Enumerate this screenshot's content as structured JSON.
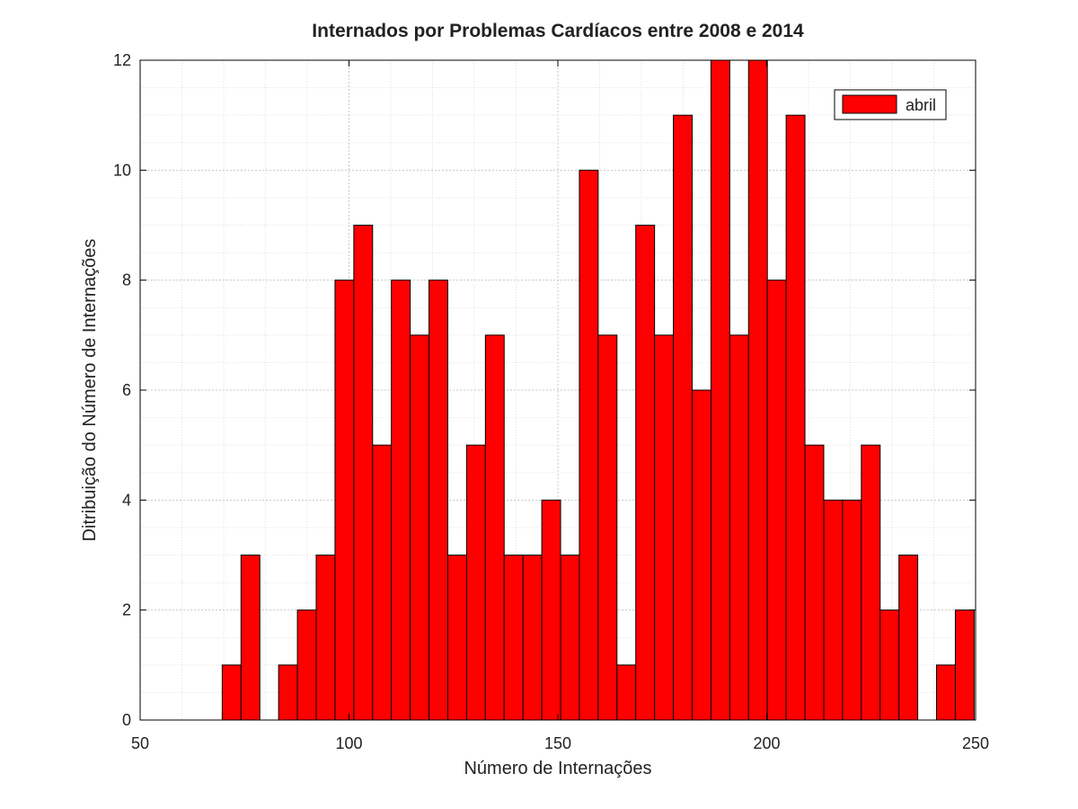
{
  "chart_data": {
    "type": "bar",
    "title": "Internados por Problemas Cardíacos entre 2008 e 2014",
    "xlabel": "Número de Internações",
    "ylabel": "Ditribuição do Número de Internações",
    "xlim": [
      50,
      250
    ],
    "ylim": [
      0,
      12
    ],
    "xticks": [
      50,
      100,
      150,
      200,
      250
    ],
    "yticks": [
      0,
      2,
      4,
      6,
      8,
      10,
      12
    ],
    "grid": true,
    "legend": {
      "position": "top-right",
      "entries": [
        "abril"
      ]
    },
    "bar_color": "#ff0000",
    "bin_width": 4.5,
    "series": [
      {
        "name": "abril",
        "bins": [
          {
            "x": 71.9,
            "value": 1
          },
          {
            "x": 76.4,
            "value": 3
          },
          {
            "x": 85.4,
            "value": 1
          },
          {
            "x": 89.9,
            "value": 2
          },
          {
            "x": 94.4,
            "value": 3
          },
          {
            "x": 98.9,
            "value": 8
          },
          {
            "x": 103.4,
            "value": 9
          },
          {
            "x": 107.9,
            "value": 5
          },
          {
            "x": 112.4,
            "value": 8
          },
          {
            "x": 116.9,
            "value": 7
          },
          {
            "x": 121.4,
            "value": 8
          },
          {
            "x": 125.9,
            "value": 3
          },
          {
            "x": 130.4,
            "value": 5
          },
          {
            "x": 134.9,
            "value": 7
          },
          {
            "x": 139.4,
            "value": 3
          },
          {
            "x": 143.9,
            "value": 3
          },
          {
            "x": 148.4,
            "value": 4
          },
          {
            "x": 152.9,
            "value": 3
          },
          {
            "x": 157.4,
            "value": 10
          },
          {
            "x": 161.9,
            "value": 7
          },
          {
            "x": 166.4,
            "value": 1
          },
          {
            "x": 170.9,
            "value": 9
          },
          {
            "x": 175.4,
            "value": 7
          },
          {
            "x": 179.9,
            "value": 11
          },
          {
            "x": 184.4,
            "value": 6
          },
          {
            "x": 188.9,
            "value": 12
          },
          {
            "x": 193.4,
            "value": 7
          },
          {
            "x": 197.9,
            "value": 12
          },
          {
            "x": 202.4,
            "value": 8
          },
          {
            "x": 206.9,
            "value": 11
          },
          {
            "x": 211.4,
            "value": 5
          },
          {
            "x": 215.9,
            "value": 4
          },
          {
            "x": 220.4,
            "value": 4
          },
          {
            "x": 224.9,
            "value": 5
          },
          {
            "x": 229.4,
            "value": 2
          },
          {
            "x": 233.9,
            "value": 3
          },
          {
            "x": 242.9,
            "value": 1
          },
          {
            "x": 247.4,
            "value": 2
          }
        ]
      }
    ]
  }
}
